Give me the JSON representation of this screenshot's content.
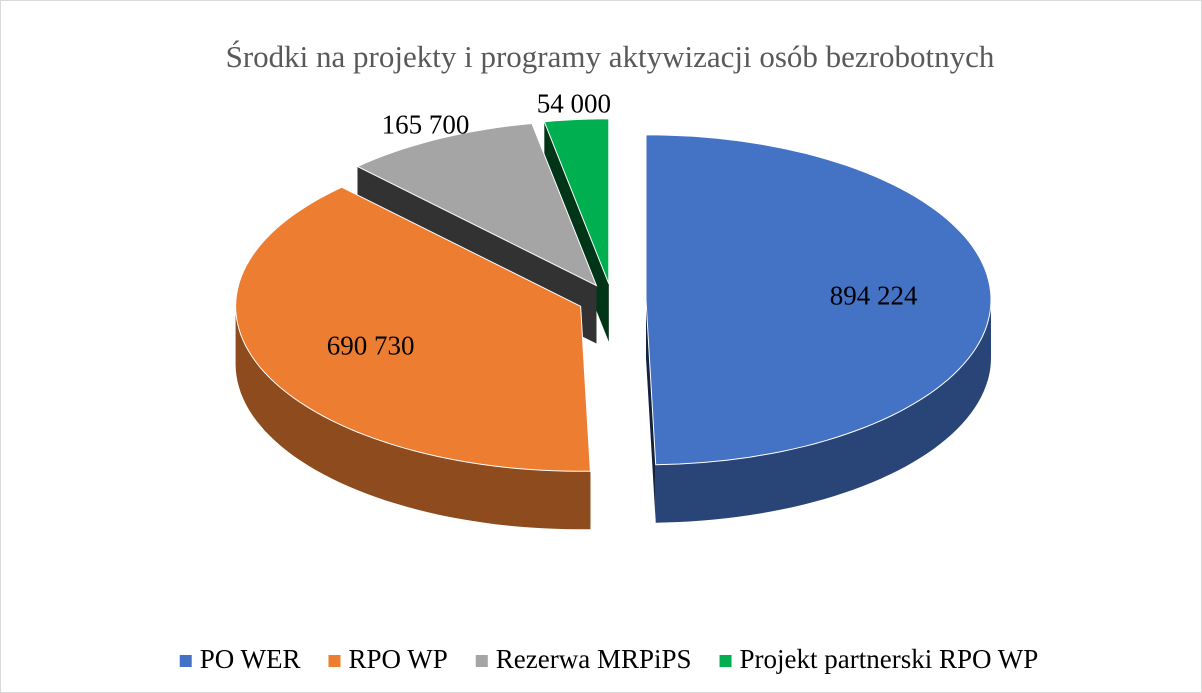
{
  "chart_data": {
    "type": "pie",
    "title": "Środki na projekty i programy aktywizacji osób bezrobotnych",
    "categories": [
      "PO WER",
      "RPO WP",
      "Rezerwa MRPiPS",
      "Projekt partnerski RPO WP"
    ],
    "values": [
      894224,
      690730,
      165700,
      54000
    ],
    "value_labels": [
      "894 224",
      "690 730",
      "165 700",
      "54 000"
    ],
    "colors": [
      "#4472c4",
      "#ed7d31",
      "#a5a5a5",
      "#00b050"
    ],
    "legend": "bottom"
  }
}
